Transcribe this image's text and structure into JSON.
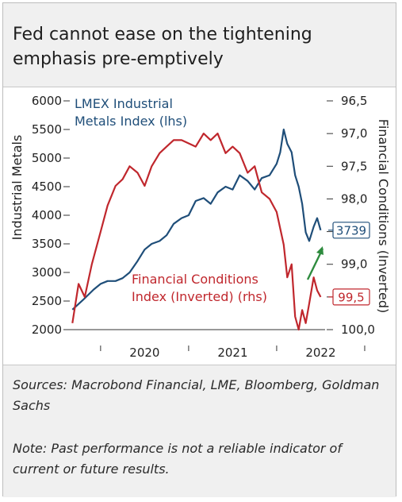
{
  "header": {
    "title": "Fed cannot ease on the tightening emphasis pre-emptively"
  },
  "footer": {
    "sources": "Sources: Macrobond Financial, LME, Bloomberg, Goldman Sachs",
    "note": "Note: Past performance is not a reliable indicator of current or future results."
  },
  "chart_data": {
    "type": "line",
    "left_axis": {
      "title": "Industrial Metals",
      "ticks": [
        "6000",
        "5500",
        "5000",
        "4500",
        "4000",
        "3500",
        "3000",
        "2500",
        "2000"
      ],
      "tick_values": [
        6000,
        5500,
        5000,
        4500,
        4000,
        3500,
        3000,
        2500,
        2000
      ],
      "range": [
        2000,
        6000
      ]
    },
    "right_axis": {
      "title": "Financial Conditions (Inverted)",
      "ticks": [
        "96,5",
        "97,0",
        "97,5",
        "98,0",
        "98,5",
        "99,0",
        "99,5",
        "100,0"
      ],
      "tick_values": [
        96.5,
        97.0,
        97.5,
        98.0,
        98.5,
        99.0,
        99.5,
        100.0
      ],
      "range": [
        96.5,
        100.0
      ],
      "inverted": true
    },
    "x_axis": {
      "labels": [
        "2020",
        "2021",
        "2022"
      ],
      "label_dates": [
        2020.0,
        2021.0,
        2022.0
      ],
      "range": [
        2019.65,
        2022.55
      ]
    },
    "series": [
      {
        "name": "LMEX Industrial Metals Index (lhs)",
        "label_lines": [
          "LMEX Industrial",
          "Metals Index (lhs)"
        ],
        "axis": "left",
        "color": "#1f4e79",
        "x": [
          2019.68,
          2019.8,
          2019.92,
          2020.0,
          2020.08,
          2020.17,
          2020.25,
          2020.33,
          2020.42,
          2020.5,
          2020.58,
          2020.67,
          2020.75,
          2020.83,
          2020.92,
          2021.0,
          2021.08,
          2021.17,
          2021.25,
          2021.33,
          2021.42,
          2021.5,
          2021.58,
          2021.67,
          2021.75,
          2021.83,
          2021.92,
          2022.0,
          2022.04,
          2022.08,
          2022.12,
          2022.17,
          2022.21,
          2022.25,
          2022.29,
          2022.33,
          2022.37,
          2022.42,
          2022.46,
          2022.5
        ],
        "values": [
          2350,
          2520,
          2700,
          2800,
          2850,
          2850,
          2900,
          3000,
          3200,
          3400,
          3500,
          3550,
          3650,
          3850,
          3950,
          4000,
          4250,
          4300,
          4200,
          4400,
          4500,
          4450,
          4700,
          4600,
          4450,
          4650,
          4700,
          4900,
          5100,
          5500,
          5250,
          5100,
          4700,
          4500,
          4200,
          3700,
          3550,
          3800,
          3950,
          3739
        ],
        "end_value": 3739,
        "end_label": "3739"
      },
      {
        "name": "Financial Conditions Index (Inverted) (rhs)",
        "label_lines": [
          "Financial Conditions",
          "Index (Inverted) (rhs)"
        ],
        "axis": "right",
        "color": "#c0272d",
        "x": [
          2019.68,
          2019.75,
          2019.82,
          2019.9,
          2020.0,
          2020.08,
          2020.17,
          2020.25,
          2020.33,
          2020.42,
          2020.5,
          2020.58,
          2020.67,
          2020.75,
          2020.83,
          2020.92,
          2021.0,
          2021.08,
          2021.17,
          2021.25,
          2021.33,
          2021.42,
          2021.5,
          2021.58,
          2021.67,
          2021.75,
          2021.83,
          2021.92,
          2022.0,
          2022.08,
          2022.12,
          2022.17,
          2022.21,
          2022.25,
          2022.29,
          2022.33,
          2022.37,
          2022.42,
          2022.46,
          2022.5
        ],
        "values": [
          99.9,
          99.3,
          99.5,
          99.0,
          98.5,
          98.1,
          97.8,
          97.7,
          97.5,
          97.6,
          97.8,
          97.5,
          97.3,
          97.2,
          97.1,
          97.1,
          97.15,
          97.2,
          97.0,
          97.1,
          97.0,
          97.3,
          97.2,
          97.3,
          97.6,
          97.5,
          97.9,
          98.0,
          98.2,
          98.7,
          99.2,
          99.0,
          99.8,
          100.0,
          99.7,
          99.9,
          99.6,
          99.2,
          99.4,
          99.5
        ],
        "end_value": 99.5,
        "end_label": "99,5"
      }
    ],
    "annotation": {
      "type": "arrow",
      "color": "#2e8b3e",
      "direction": "up-right"
    }
  }
}
